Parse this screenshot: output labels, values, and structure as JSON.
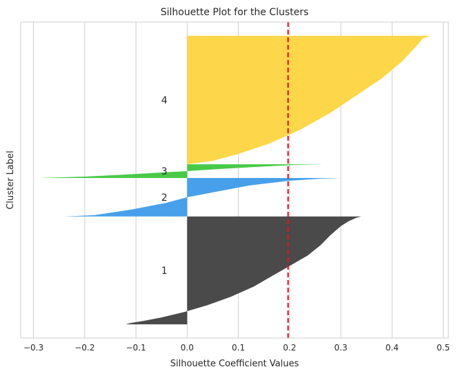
{
  "chart_data": {
    "type": "silhouette",
    "title": "Silhouette Plot for the Clusters",
    "xlabel": "Silhouette Coefficient Values",
    "ylabel": "Cluster Label",
    "xlim": [
      -0.325,
      0.51
    ],
    "x_ticks": [
      -0.3,
      -0.2,
      -0.1,
      0.0,
      0.1,
      0.2,
      0.3,
      0.4,
      0.5
    ],
    "x_tick_labels": [
      "−0.3",
      "−0.2",
      "−0.1",
      "0.0",
      "0.1",
      "0.2",
      "0.3",
      "0.4",
      "0.5"
    ],
    "grid": "vertical",
    "average_silhouette": 0.197,
    "average_line_color": "#e8141c",
    "clusters": [
      {
        "label": "1",
        "color": "#404040",
        "start": 0,
        "end": 157,
        "profile": [
          [
            0,
            -0.12
          ],
          [
            2,
            -0.11
          ],
          [
            5,
            -0.085
          ],
          [
            10,
            -0.05
          ],
          [
            18,
            -0.005
          ],
          [
            28,
            0.04
          ],
          [
            40,
            0.085
          ],
          [
            55,
            0.13
          ],
          [
            70,
            0.165
          ],
          [
            85,
            0.2
          ],
          [
            100,
            0.235
          ],
          [
            115,
            0.26
          ],
          [
            130,
            0.28
          ],
          [
            143,
            0.3
          ],
          [
            150,
            0.315
          ],
          [
            155,
            0.33
          ],
          [
            157,
            0.34
          ]
        ]
      },
      {
        "label": "2",
        "color": "#3d9be8",
        "start": 157,
        "end": 213,
        "profile": [
          [
            0,
            -0.24
          ],
          [
            2,
            -0.18
          ],
          [
            10,
            -0.11
          ],
          [
            20,
            -0.04
          ],
          [
            28,
            0.0
          ],
          [
            35,
            0.05
          ],
          [
            45,
            0.12
          ],
          [
            52,
            0.2
          ],
          [
            55,
            0.26
          ],
          [
            56,
            0.3
          ]
        ]
      },
      {
        "label": "3",
        "color": "#3ec73e",
        "start": 213,
        "end": 233,
        "profile": [
          [
            0,
            -0.29
          ],
          [
            2,
            -0.2
          ],
          [
            5,
            -0.12
          ],
          [
            8,
            -0.05
          ],
          [
            10,
            0.0
          ],
          [
            13,
            0.06
          ],
          [
            16,
            0.13
          ],
          [
            19,
            0.21
          ],
          [
            20,
            0.265
          ]
        ]
      },
      {
        "label": "4",
        "color": "#fdd53f",
        "start": 233,
        "end": 420,
        "profile": [
          [
            0,
            0.0
          ],
          [
            5,
            0.05
          ],
          [
            15,
            0.1
          ],
          [
            30,
            0.16
          ],
          [
            50,
            0.22
          ],
          [
            75,
            0.28
          ],
          [
            100,
            0.33
          ],
          [
            125,
            0.38
          ],
          [
            150,
            0.42
          ],
          [
            170,
            0.445
          ],
          [
            183,
            0.46
          ],
          [
            187,
            0.475
          ]
        ]
      }
    ],
    "ylim": [
      -20,
      440
    ]
  }
}
